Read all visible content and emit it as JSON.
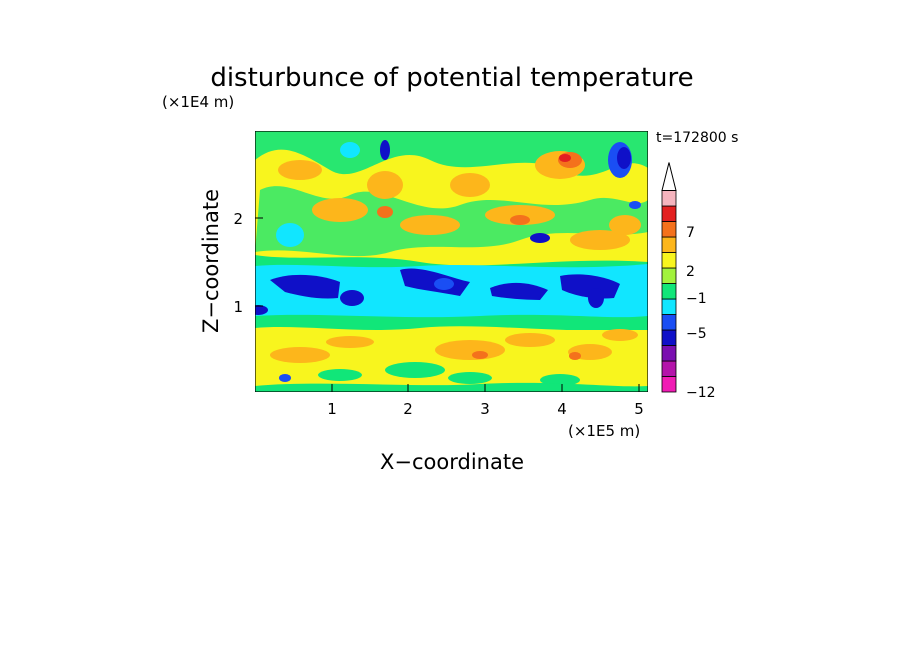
{
  "chart_data": {
    "type": "heatmap",
    "title": "disturbunce of potential temperature",
    "xlabel": "X−coordinate",
    "ylabel": "Z−coordinate",
    "x_unit": "(×1E5 m)",
    "y_unit": "(×1E4 m)",
    "time_label": "t=172800 s",
    "xlim": [
      0,
      5.15
    ],
    "ylim": [
      0,
      2.95
    ],
    "x_ticks": [
      "1",
      "2",
      "3",
      "4",
      "5"
    ],
    "y_ticks": [
      "1",
      "2"
    ],
    "colorbar": {
      "levels": [
        -12,
        -9,
        -7,
        -5,
        -3,
        -1,
        0,
        1,
        2,
        3,
        5,
        7,
        9,
        12
      ],
      "tick_labels": [
        "7",
        "2",
        "−1",
        "−5",
        "−12"
      ],
      "extend": "max",
      "colors": [
        "#f01cb4",
        "#b414aa",
        "#7a0fb0",
        "#0f10c8",
        "#1a4ef4",
        "#11e6ff",
        "#11e679",
        "#a2f23d",
        "#f8f51e",
        "#fdb61b",
        "#f4711c",
        "#e32020",
        "#f5b4be"
      ]
    },
    "field_bands": [
      {
        "z_range": [
          0,
          0.1
        ],
        "dominant": [
          "green",
          "yellow"
        ]
      },
      {
        "z_range": [
          0.1,
          0.75
        ],
        "dominant": [
          "yellow",
          "orange",
          "green"
        ]
      },
      {
        "z_range": [
          0.75,
          1.45
        ],
        "dominant": [
          "cyan",
          "blue"
        ]
      },
      {
        "z_range": [
          1.45,
          2.95
        ],
        "dominant": [
          "yellow",
          "orange",
          "green",
          "red"
        ]
      }
    ]
  }
}
